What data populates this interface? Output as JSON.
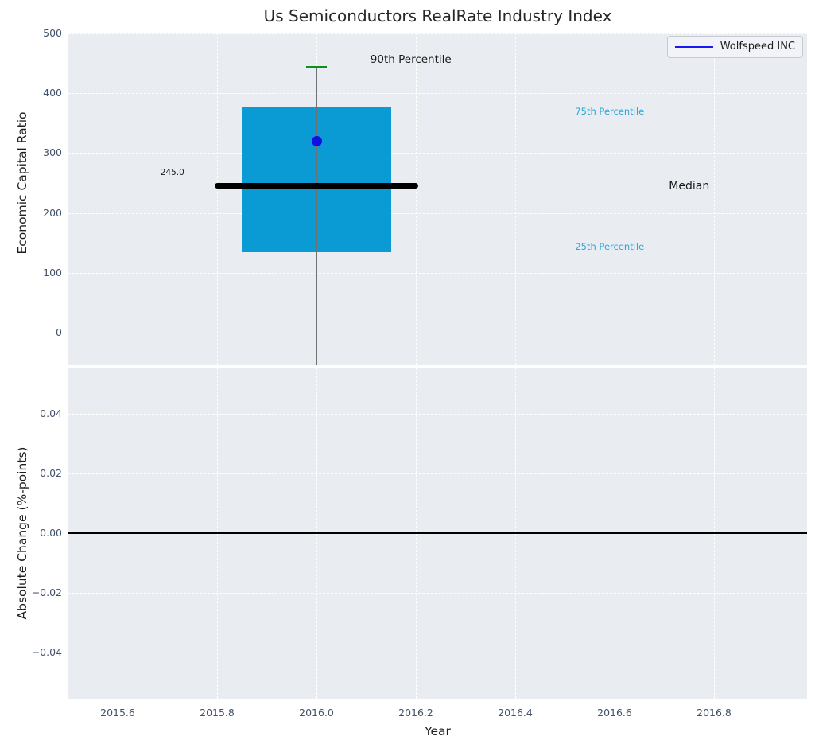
{
  "title": "Us Semiconductors RealRate Industry Index",
  "legend": {
    "label": "Wolfspeed INC"
  },
  "colors": {
    "panel_background": "#e9edf1",
    "grid": "#ffffff",
    "tick_text": "#43536b",
    "box_fill": "#0a9bd4",
    "median_line": "#000000",
    "whisker": "#707070",
    "whisker_cap": "#0f8f20",
    "company_point": "#1010e0",
    "legend_line": "#1a1aee",
    "percentile_label": "#2aa6db",
    "zero_line": "#000000"
  },
  "x_axis": {
    "label": "Year",
    "xlim": [
      2015.5008,
      2016.9872
    ],
    "ticks": [
      {
        "value": 2015.6,
        "label": "2015.6"
      },
      {
        "value": 2015.8,
        "label": "2015.8"
      },
      {
        "value": 2016.0,
        "label": "2016.0"
      },
      {
        "value": 2016.2,
        "label": "2016.2"
      },
      {
        "value": 2016.4,
        "label": "2016.4"
      },
      {
        "value": 2016.6,
        "label": "2016.6"
      },
      {
        "value": 2016.8,
        "label": "2016.8"
      }
    ]
  },
  "chart_data": [
    {
      "type": "box",
      "title": "Us Semiconductors RealRate Industry Index",
      "ylabel": "Economic Capital Ratio",
      "ylim": [
        -54.5,
        501.5
      ],
      "grid": true,
      "yticks": [
        {
          "value": 0,
          "label": "0"
        },
        {
          "value": 100,
          "label": "100"
        },
        {
          "value": 200,
          "label": "200"
        },
        {
          "value": 300,
          "label": "300"
        },
        {
          "value": 400,
          "label": "400"
        },
        {
          "value": 500,
          "label": "500"
        }
      ],
      "box": {
        "x": 2016.0,
        "q1": 135,
        "median": 245.0,
        "q3": 378,
        "p90": 443,
        "box_half_width": 0.15,
        "median_half_width": 0.205,
        "whisker_extends_below_axis": true
      },
      "company_point": {
        "label": "Wolfspeed INC",
        "x": 2016.0,
        "y": 320
      },
      "annotations": [
        {
          "name": "annotation-90th-percentile",
          "text": "90th Percentile",
          "x": 2016.19,
          "y": 456,
          "color": "#1a1a1a",
          "size": 13.5
        },
        {
          "name": "annotation-75th-percentile",
          "text": "75th Percentile",
          "x": 2016.59,
          "y": 370,
          "color": "#2aa6db",
          "size": 11.5
        },
        {
          "name": "annotation-25th-percentile",
          "text": "25th Percentile",
          "x": 2016.59,
          "y": 144,
          "color": "#2aa6db",
          "size": 11.5
        },
        {
          "name": "annotation-median",
          "text": "Median",
          "x": 2016.75,
          "y": 245,
          "color": "#1a1a1a",
          "size": 14
        },
        {
          "name": "median-value-label",
          "text": "245.0",
          "x": 2015.71,
          "y": 268,
          "color": "#1a1a1a",
          "size": 10.5
        }
      ],
      "legend": {
        "position": "upper right",
        "entries": [
          {
            "label": "Wolfspeed INC",
            "color": "#1a1aee"
          }
        ]
      }
    },
    {
      "type": "line",
      "ylabel": "Absolute Change (%-points)",
      "ylim": [
        -0.0553,
        0.0553
      ],
      "grid": true,
      "yticks": [
        {
          "value": 0.04,
          "label": "0.04"
        },
        {
          "value": 0.02,
          "label": "0.02"
        },
        {
          "value": 0.0,
          "label": "0.00"
        },
        {
          "value": -0.02,
          "label": "−0.02"
        },
        {
          "value": -0.04,
          "label": "−0.04"
        }
      ],
      "zero_line": 0.0,
      "series": []
    }
  ]
}
